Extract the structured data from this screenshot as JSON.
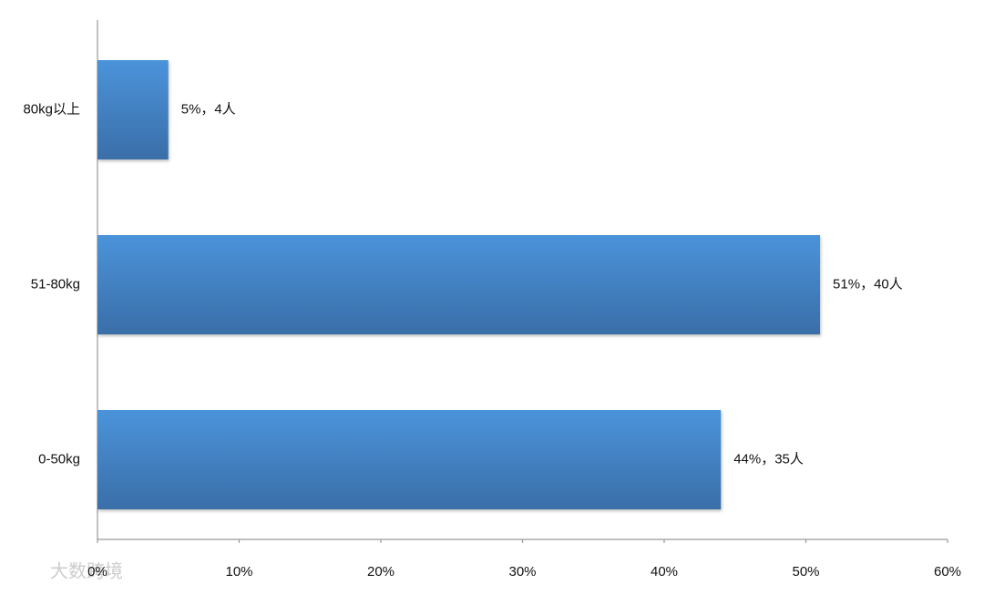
{
  "chart_data": {
    "type": "bar",
    "orientation": "horizontal",
    "categories": [
      "80kg以上",
      "51-80kg",
      "0-50kg"
    ],
    "values": [
      5,
      51,
      44
    ],
    "value_labels": [
      "5%，4人",
      "51%，40人",
      "44%，35人"
    ],
    "color": "#4281c6",
    "xlim": [
      0,
      60
    ],
    "xticks": [
      {
        "value": 0,
        "label": "0%"
      },
      {
        "value": 10,
        "label": "10%"
      },
      {
        "value": 20,
        "label": "20%"
      },
      {
        "value": 30,
        "label": "30%"
      },
      {
        "value": 40,
        "label": "40%"
      },
      {
        "value": 50,
        "label": "50%"
      },
      {
        "value": 60,
        "label": "60%"
      }
    ],
    "grid": false,
    "watermark": "大数跨境"
  }
}
